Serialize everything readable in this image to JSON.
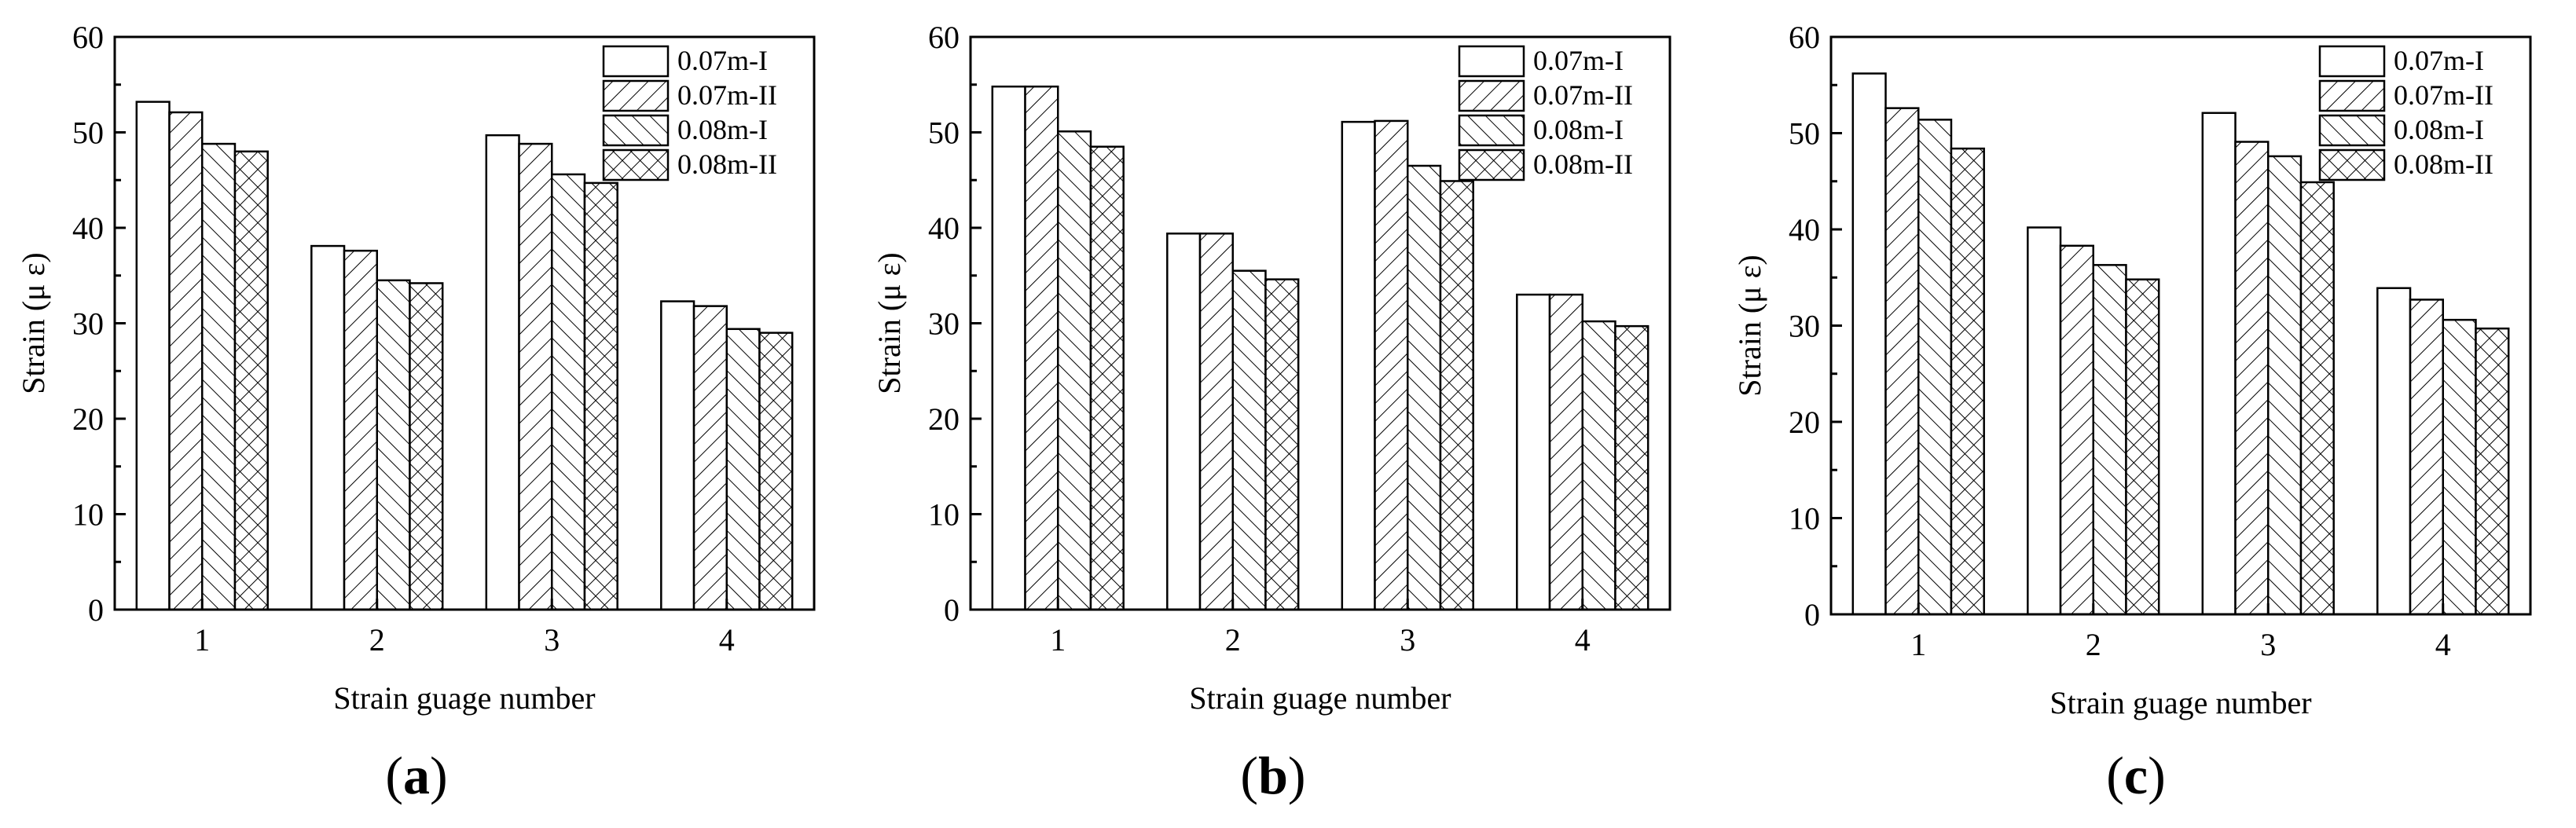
{
  "chart_data": [
    {
      "type": "bar",
      "panel": "a",
      "categories": [
        "1",
        "2",
        "3",
        "4"
      ],
      "series": [
        {
          "name": "0.07m-I",
          "values": [
            53.2,
            38.1,
            49.7,
            32.3
          ]
        },
        {
          "name": "0.07m-II",
          "values": [
            52.1,
            37.6,
            48.8,
            31.8
          ]
        },
        {
          "name": "0.08m-I",
          "values": [
            48.8,
            34.5,
            45.6,
            29.4
          ]
        },
        {
          "name": "0.08m-II",
          "values": [
            48.0,
            34.2,
            44.7,
            29.0
          ]
        }
      ],
      "xlabel": "Strain guage number",
      "ylabel": "Strain (μ ε)",
      "ylim": [
        0,
        60
      ],
      "yticks": [
        "0",
        "10",
        "20",
        "30",
        "40",
        "50",
        "60"
      ],
      "legend_position": "top-right"
    },
    {
      "type": "bar",
      "panel": "b",
      "categories": [
        "1",
        "2",
        "3",
        "4"
      ],
      "series": [
        {
          "name": "0.07m-I",
          "values": [
            54.8,
            39.4,
            51.1,
            33.0
          ]
        },
        {
          "name": "0.07m-II",
          "values": [
            54.8,
            39.4,
            51.2,
            33.0
          ]
        },
        {
          "name": "0.08m-I",
          "values": [
            50.1,
            35.5,
            46.5,
            30.2
          ]
        },
        {
          "name": "0.08m-II",
          "values": [
            48.5,
            34.6,
            44.9,
            29.7
          ]
        }
      ],
      "xlabel": "Strain guage number",
      "ylabel": "Strain (μ ε)",
      "ylim": [
        0,
        60
      ],
      "yticks": [
        "0",
        "10",
        "20",
        "30",
        "40",
        "50",
        "60"
      ],
      "legend_position": "top-right"
    },
    {
      "type": "bar",
      "panel": "c",
      "categories": [
        "1",
        "2",
        "3",
        "4"
      ],
      "series": [
        {
          "name": "0.07m-I",
          "values": [
            56.2,
            40.2,
            52.1,
            33.9
          ]
        },
        {
          "name": "0.07m-II",
          "values": [
            52.6,
            38.3,
            49.1,
            32.7
          ]
        },
        {
          "name": "0.08m-I",
          "values": [
            51.4,
            36.3,
            47.6,
            30.6
          ]
        },
        {
          "name": "0.08m-II",
          "values": [
            48.4,
            34.8,
            44.9,
            29.7
          ]
        }
      ],
      "xlabel": "Strain guage number",
      "ylabel": "Strain (μ ε)",
      "ylim": [
        0,
        60
      ],
      "yticks": [
        "0",
        "10",
        "20",
        "30",
        "40",
        "50",
        "60"
      ],
      "legend_position": "top-right"
    }
  ]
}
